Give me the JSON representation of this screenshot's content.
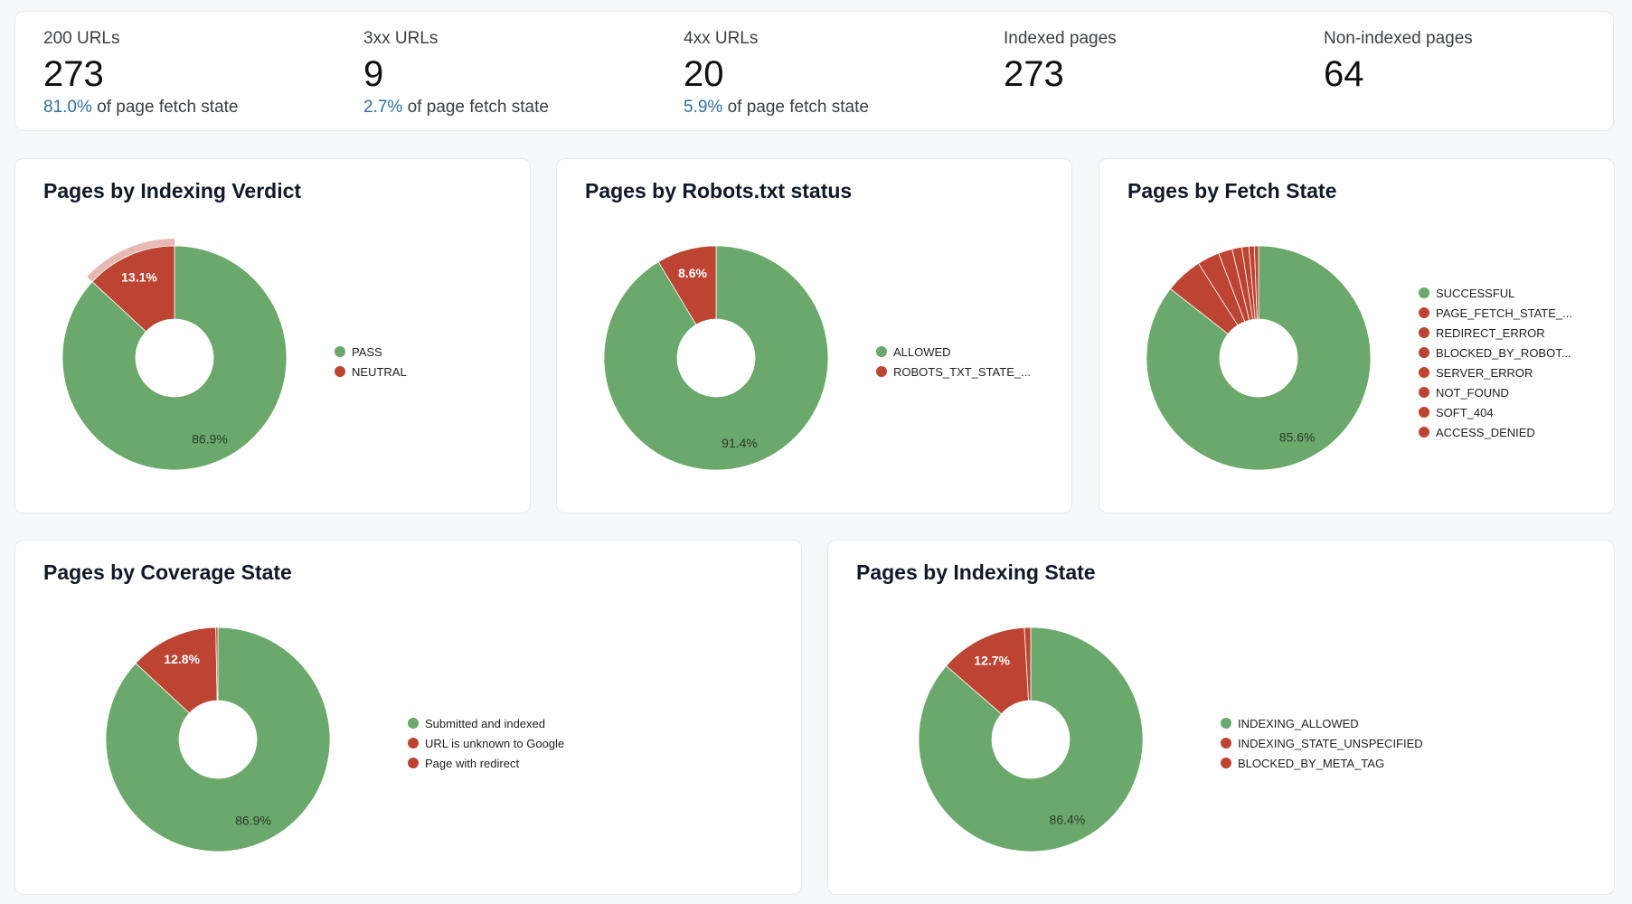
{
  "kpis": [
    {
      "label": "200 URLs",
      "value": "273",
      "pct": "81.0%",
      "suffix": "of page fetch state"
    },
    {
      "label": "3xx URLs",
      "value": "9",
      "pct": "2.7%",
      "suffix": "of page fetch state"
    },
    {
      "label": "4xx URLs",
      "value": "20",
      "pct": "5.9%",
      "suffix": "of page fetch state"
    },
    {
      "label": "Indexed pages",
      "value": "273",
      "pct": "",
      "suffix": ""
    },
    {
      "label": "Non-indexed pages",
      "value": "64",
      "pct": "",
      "suffix": ""
    }
  ],
  "colors": {
    "green": "#6ba86b",
    "red": "#bd4432",
    "highlight": "#e8b9b2",
    "link_blue": "#2f6f9f"
  },
  "charts": {
    "indexing_verdict": {
      "title": "Pages by Indexing Verdict"
    },
    "robots_status": {
      "title": "Pages by Robots.txt status"
    },
    "fetch_state": {
      "title": "Pages by Fetch State"
    },
    "coverage_state": {
      "title": "Pages by Coverage State"
    },
    "indexing_state": {
      "title": "Pages by Indexing State"
    }
  },
  "chart_data": [
    {
      "type": "pie",
      "title": "Pages by Indexing Verdict",
      "categories": [
        "PASS",
        "NEUTRAL"
      ],
      "values": [
        86.9,
        13.1
      ],
      "colors": [
        "#6ba86b",
        "#bd4432"
      ],
      "labels": [
        "86.9%",
        "13.1%"
      ],
      "highlighted": "NEUTRAL",
      "legend_position": "right"
    },
    {
      "type": "pie",
      "title": "Pages by Robots.txt status",
      "categories": [
        "ALLOWED",
        "ROBOTS_TXT_STATE_..."
      ],
      "values": [
        91.4,
        8.6
      ],
      "colors": [
        "#6ba86b",
        "#bd4432"
      ],
      "labels": [
        "91.4%",
        "8.6%"
      ],
      "legend_position": "right"
    },
    {
      "type": "pie",
      "title": "Pages by Fetch State",
      "categories": [
        "SUCCESSFUL",
        "PAGE_FETCH_STATE_...",
        "REDIRECT_ERROR",
        "BLOCKED_BY_ROBOT...",
        "SERVER_ERROR",
        "NOT_FOUND",
        "SOFT_404",
        "ACCESS_DENIED"
      ],
      "values": [
        85.6,
        5.4,
        3.2,
        2.0,
        1.4,
        1.0,
        0.8,
        0.6
      ],
      "colors": [
        "#6ba86b",
        "#bd4432",
        "#bd4432",
        "#bd4432",
        "#bd4432",
        "#bd4432",
        "#bd4432",
        "#bd4432"
      ],
      "labels": [
        "85.6%",
        "",
        "",
        "",
        "",
        "",
        "",
        ""
      ],
      "legend_position": "right"
    },
    {
      "type": "pie",
      "title": "Pages by Coverage State",
      "categories": [
        "Submitted and indexed",
        "URL is unknown to Google",
        "Page with redirect"
      ],
      "values": [
        86.9,
        12.8,
        0.3
      ],
      "colors": [
        "#6ba86b",
        "#bd4432",
        "#bd4432"
      ],
      "labels": [
        "86.9%",
        "12.8%",
        ""
      ],
      "legend_position": "right"
    },
    {
      "type": "pie",
      "title": "Pages by Indexing State",
      "categories": [
        "INDEXING_ALLOWED",
        "INDEXING_STATE_UNSPECIFIED",
        "BLOCKED_BY_META_TAG"
      ],
      "values": [
        86.4,
        12.7,
        0.9
      ],
      "colors": [
        "#6ba86b",
        "#bd4432",
        "#bd4432"
      ],
      "labels": [
        "86.4%",
        "12.7%",
        ""
      ],
      "legend_position": "right"
    }
  ]
}
